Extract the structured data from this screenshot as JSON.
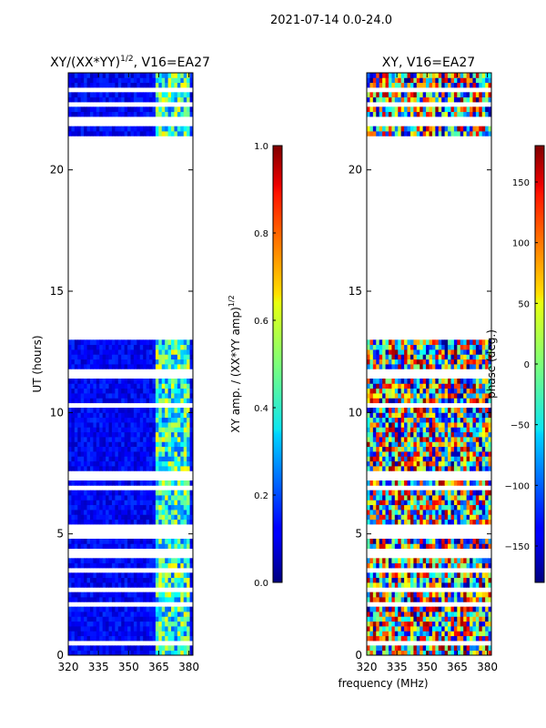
{
  "chart_data": [
    {
      "type": "heatmap",
      "title": "XY/(XX*YY)^1/2, V16=EA27",
      "title_base": "XY/(XX*YY)",
      "title_exp": "1/2",
      "title_rest": ", V16=EA27",
      "xlabel": "",
      "ylabel": "UT (hours)",
      "xlim": [
        320,
        382
      ],
      "ylim": [
        0,
        24
      ],
      "xticks": [
        320,
        335,
        350,
        365,
        380
      ],
      "yticks": [
        0,
        5,
        10,
        15,
        20
      ],
      "gap_hours": [
        13.0,
        21.5
      ],
      "blank_rows_hours": [
        0.5,
        0.8,
        1.6,
        2.1,
        2.7,
        3.0,
        3.5,
        3.8,
        4.1,
        4.3,
        4.6,
        4.9,
        5.1,
        5.3,
        5.6,
        6.0,
        6.6,
        6.9,
        7.3,
        7.5,
        8.0,
        8.6,
        8.8,
        9.0,
        9.4,
        9.6,
        10.3,
        10.6,
        11.0,
        11.5,
        11.7,
        12.2,
        21.6,
        21.9,
        22.1,
        22.4,
        22.7,
        23.2,
        23.3
      ],
      "high_band_MHz": [
        363,
        381
      ],
      "colorbar": {
        "label_base": "XY amp. / (XX*YY amp)",
        "label_exp": "1/2",
        "min": 0.0,
        "max": 1.0,
        "ticks": [
          "0.0",
          "0.2",
          "0.4",
          "0.6",
          "0.8",
          "1.0"
        ],
        "tick_values": [
          0.0,
          0.2,
          0.4,
          0.6,
          0.8,
          1.0
        ]
      }
    },
    {
      "type": "heatmap",
      "title": "XY, V16=EA27",
      "xlabel": "frequency (MHz)",
      "ylabel": "",
      "xlim": [
        320,
        382
      ],
      "ylim": [
        0,
        24
      ],
      "xticks": [
        320,
        335,
        350,
        365,
        380
      ],
      "yticks": [
        0,
        5,
        10,
        15,
        20
      ],
      "gap_hours": [
        13.0,
        21.5
      ],
      "blank_rows_hours": [
        0.5,
        0.8,
        1.6,
        2.1,
        2.7,
        3.0,
        3.5,
        3.8,
        4.1,
        4.3,
        4.6,
        4.9,
        5.1,
        5.3,
        5.6,
        6.0,
        6.6,
        6.9,
        7.3,
        7.5,
        8.0,
        8.6,
        8.8,
        9.0,
        9.4,
        9.6,
        10.3,
        10.6,
        11.0,
        11.5,
        11.7,
        12.2,
        21.6,
        21.9,
        22.1,
        22.4,
        22.7,
        23.2,
        23.3
      ],
      "colorbar": {
        "label": "phase (deg.)",
        "min": -180,
        "max": 180,
        "ticks": [
          "150",
          "100",
          "50",
          "0",
          "−50",
          "−100",
          "−150"
        ],
        "tick_values": [
          150,
          100,
          50,
          0,
          -50,
          -100,
          -150
        ]
      }
    }
  ],
  "figure": {
    "suptitle": "2021-07-14 0.0-24.0"
  }
}
